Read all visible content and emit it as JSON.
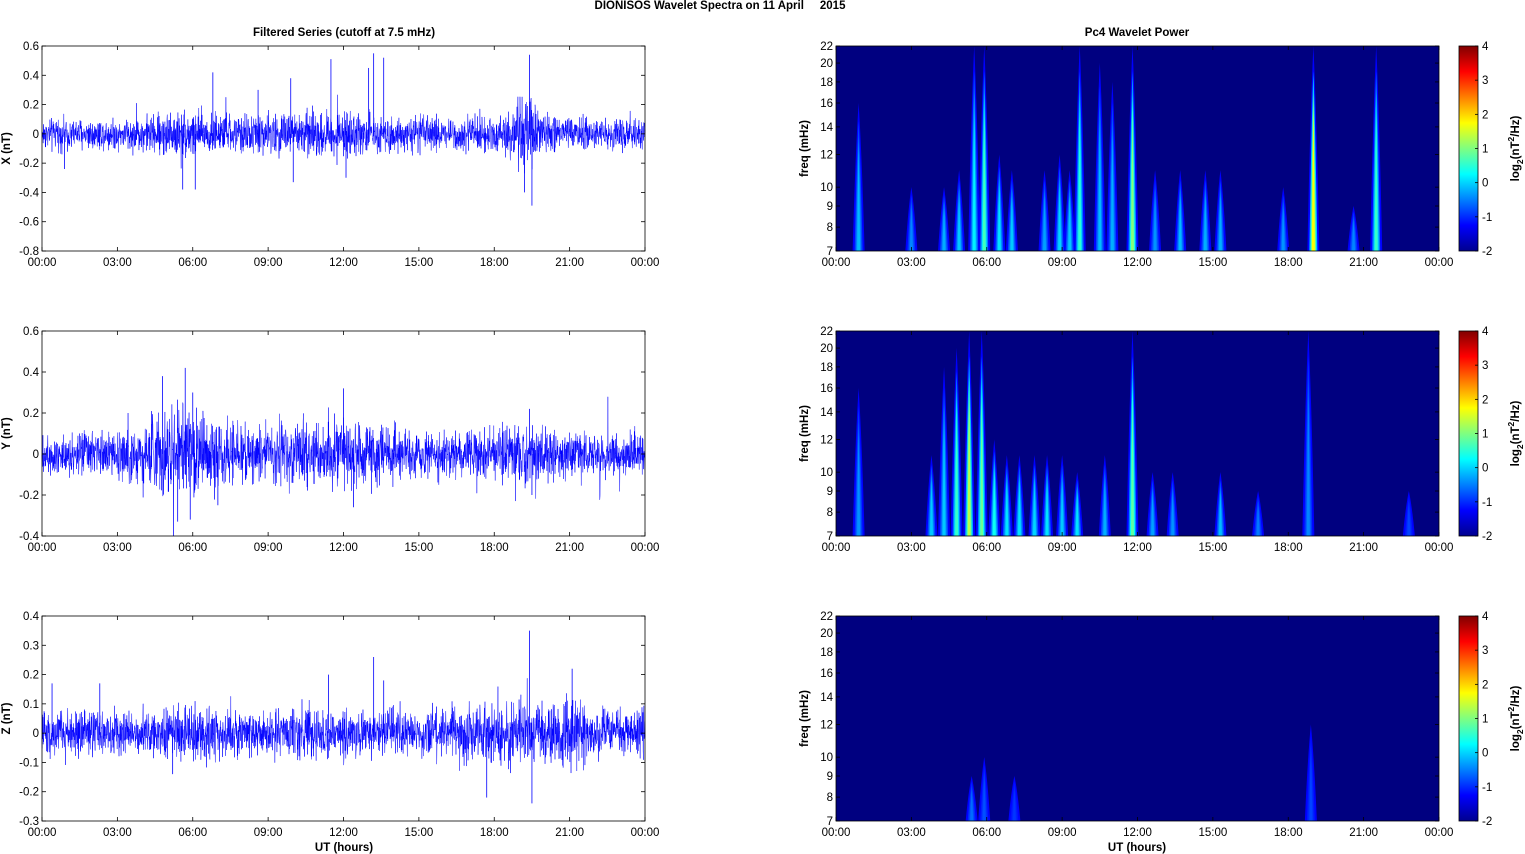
{
  "figure": {
    "suptitle": "DIONISOS Wavelet Spectra on 11 April     2015",
    "left_title": "Filtered Series (cutoff at 7.5 mHz)",
    "right_title": "Pc4 Wavelet Power",
    "xlabel": "UT (hours)",
    "freq_label": "freq (mHz)",
    "colorbar_label_parts": [
      "log",
      "2",
      "(nT",
      "2",
      "/Hz)"
    ]
  },
  "x_ticks": [
    "00:00",
    "03:00",
    "06:00",
    "09:00",
    "12:00",
    "15:00",
    "18:00",
    "21:00",
    "00:00"
  ],
  "colors": {
    "trace": "#0000ff",
    "cmap_low": "#00008f",
    "cmap_high": "#800000"
  },
  "chart_data": [
    {
      "type": "line",
      "component": "X",
      "ylabel": "X (nT)",
      "xlim": [
        0,
        24
      ],
      "ylim": [
        -0.8,
        0.6
      ],
      "yticks": [
        -0.8,
        -0.6,
        -0.4,
        -0.2,
        0,
        0.2,
        0.4,
        0.6
      ],
      "ytick_labels": [
        "-0.8",
        "-0.6",
        "-0.4",
        "-0.2",
        "0",
        "0.2",
        "0.4",
        "0.6"
      ],
      "envelope_hours": [
        0,
        1,
        2,
        3,
        4,
        5,
        6,
        7,
        8,
        9,
        10,
        11,
        12,
        13,
        14,
        15,
        16,
        17,
        18,
        19,
        19.5,
        20,
        21,
        22,
        23,
        24
      ],
      "envelope_amp": [
        0.08,
        0.08,
        0.08,
        0.08,
        0.09,
        0.12,
        0.13,
        0.1,
        0.1,
        0.11,
        0.12,
        0.12,
        0.11,
        0.1,
        0.09,
        0.09,
        0.09,
        0.09,
        0.09,
        0.16,
        0.22,
        0.1,
        0.09,
        0.08,
        0.08,
        0.08
      ],
      "spikes": [
        {
          "t": 6.8,
          "v": 0.42
        },
        {
          "t": 8.6,
          "v": 0.3
        },
        {
          "t": 9.9,
          "v": 0.38
        },
        {
          "t": 11.5,
          "v": 0.51
        },
        {
          "t": 13.0,
          "v": 0.45
        },
        {
          "t": 13.2,
          "v": 0.55
        },
        {
          "t": 13.6,
          "v": 0.52
        },
        {
          "t": 19.4,
          "v": 0.54
        },
        {
          "t": 19.5,
          "v": -0.49
        },
        {
          "t": 5.6,
          "v": -0.38
        },
        {
          "t": 6.1,
          "v": -0.38
        },
        {
          "t": 10.0,
          "v": -0.33
        },
        {
          "t": 12.1,
          "v": -0.3
        },
        {
          "t": 19.2,
          "v": -0.4
        },
        {
          "t": 0.9,
          "v": -0.24
        }
      ]
    },
    {
      "type": "line",
      "component": "Y",
      "ylabel": "Y (nT)",
      "xlim": [
        0,
        24
      ],
      "ylim": [
        -0.4,
        0.6
      ],
      "yticks": [
        -0.4,
        -0.2,
        0,
        0.2,
        0.4,
        0.6
      ],
      "ytick_labels": [
        "-0.4",
        "-0.2",
        "0",
        "0.2",
        "0.4",
        "0.6"
      ],
      "envelope_hours": [
        0,
        1,
        2,
        3,
        4,
        5,
        6,
        7,
        8,
        9,
        10,
        11,
        12,
        13,
        14,
        15,
        16,
        17,
        18,
        19,
        20,
        21,
        22,
        23,
        24
      ],
      "envelope_amp": [
        0.08,
        0.08,
        0.08,
        0.09,
        0.12,
        0.18,
        0.17,
        0.13,
        0.12,
        0.11,
        0.12,
        0.12,
        0.14,
        0.11,
        0.1,
        0.09,
        0.09,
        0.09,
        0.09,
        0.12,
        0.1,
        0.09,
        0.09,
        0.08,
        0.08
      ],
      "spikes": [
        {
          "t": 4.8,
          "v": 0.38
        },
        {
          "t": 5.7,
          "v": 0.42
        },
        {
          "t": 6.0,
          "v": 0.3
        },
        {
          "t": 12.0,
          "v": 0.32
        },
        {
          "t": 19.4,
          "v": 0.22
        },
        {
          "t": 5.4,
          "v": -0.33
        },
        {
          "t": 5.9,
          "v": -0.32
        },
        {
          "t": 12.4,
          "v": -0.26
        },
        {
          "t": 19.5,
          "v": -0.2
        },
        {
          "t": 7.0,
          "v": -0.25
        }
      ]
    },
    {
      "type": "line",
      "component": "Z",
      "ylabel": "Z (nT)",
      "xlim": [
        0,
        24
      ],
      "ylim": [
        -0.3,
        0.4
      ],
      "yticks": [
        -0.3,
        -0.2,
        -0.1,
        0,
        0.1,
        0.2,
        0.3,
        0.4
      ],
      "ytick_labels": [
        "-0.3",
        "-0.2",
        "-0.1",
        "0",
        "0.1",
        "0.2",
        "0.3",
        "0.4"
      ],
      "envelope_hours": [
        0,
        1,
        2,
        3,
        4,
        5,
        6,
        7,
        8,
        9,
        10,
        11,
        12,
        13,
        14,
        15,
        16,
        17,
        18,
        19,
        20,
        21,
        22,
        23,
        24
      ],
      "envelope_amp": [
        0.06,
        0.06,
        0.06,
        0.06,
        0.06,
        0.07,
        0.07,
        0.07,
        0.06,
        0.06,
        0.07,
        0.07,
        0.07,
        0.06,
        0.06,
        0.06,
        0.07,
        0.07,
        0.07,
        0.09,
        0.07,
        0.09,
        0.06,
        0.06,
        0.06
      ],
      "spikes": [
        {
          "t": 0.4,
          "v": 0.17
        },
        {
          "t": 2.3,
          "v": 0.17
        },
        {
          "t": 11.4,
          "v": 0.2
        },
        {
          "t": 13.2,
          "v": 0.26
        },
        {
          "t": 13.6,
          "v": 0.18
        },
        {
          "t": 19.4,
          "v": 0.35
        },
        {
          "t": 21.1,
          "v": 0.22
        },
        {
          "t": 19.5,
          "v": -0.24
        },
        {
          "t": 17.7,
          "v": -0.22
        },
        {
          "t": 5.2,
          "v": -0.14
        }
      ]
    },
    {
      "type": "heatmap",
      "component": "X",
      "ylabel": "freq (mHz)",
      "xlim": [
        0,
        24
      ],
      "ylim": [
        7,
        22
      ],
      "yscale": "log",
      "yticks": [
        7,
        8,
        9,
        10,
        12,
        14,
        16,
        18,
        20,
        22
      ],
      "ytick_labels": [
        "7",
        "8",
        "9",
        "10",
        "12",
        "14",
        "16",
        "18",
        "20",
        "22"
      ],
      "clim": [
        -2,
        4
      ],
      "colorbar_ticks": [
        -2,
        -1,
        0,
        1,
        2,
        3,
        4
      ],
      "colorbar_tick_labels": [
        "-2",
        "-1",
        "0",
        "1",
        "2",
        "3",
        "4"
      ],
      "bursts": [
        {
          "t": 0.9,
          "fmax": 16,
          "peak": -0.6
        },
        {
          "t": 3.0,
          "fmax": 10,
          "peak": -1.0
        },
        {
          "t": 4.3,
          "fmax": 10,
          "peak": -0.7
        },
        {
          "t": 4.9,
          "fmax": 11,
          "peak": -0.5
        },
        {
          "t": 5.5,
          "fmax": 22,
          "peak": -0.2
        },
        {
          "t": 5.9,
          "fmax": 22,
          "peak": 0.4
        },
        {
          "t": 6.5,
          "fmax": 12,
          "peak": -0.3
        },
        {
          "t": 7.0,
          "fmax": 11,
          "peak": -0.5
        },
        {
          "t": 8.3,
          "fmax": 11,
          "peak": -0.8
        },
        {
          "t": 8.9,
          "fmax": 12,
          "peak": -0.4
        },
        {
          "t": 9.3,
          "fmax": 11,
          "peak": -0.5
        },
        {
          "t": 9.7,
          "fmax": 22,
          "peak": 0.2
        },
        {
          "t": 10.5,
          "fmax": 20,
          "peak": -0.6
        },
        {
          "t": 11.0,
          "fmax": 18,
          "peak": -0.7
        },
        {
          "t": 11.8,
          "fmax": 22,
          "peak": 0.9
        },
        {
          "t": 12.7,
          "fmax": 11,
          "peak": -0.9
        },
        {
          "t": 13.7,
          "fmax": 11,
          "peak": -0.6
        },
        {
          "t": 14.7,
          "fmax": 11,
          "peak": -0.7
        },
        {
          "t": 15.3,
          "fmax": 11,
          "peak": -0.7
        },
        {
          "t": 17.8,
          "fmax": 10,
          "peak": -0.9
        },
        {
          "t": 19.0,
          "fmax": 22,
          "peak": 1.8
        },
        {
          "t": 20.6,
          "fmax": 9,
          "peak": -1.0
        },
        {
          "t": 21.5,
          "fmax": 22,
          "peak": 0.3
        }
      ]
    },
    {
      "type": "heatmap",
      "component": "Y",
      "ylabel": "freq (mHz)",
      "xlim": [
        0,
        24
      ],
      "ylim": [
        7,
        22
      ],
      "yscale": "log",
      "yticks": [
        7,
        8,
        9,
        10,
        12,
        14,
        16,
        18,
        20,
        22
      ],
      "ytick_labels": [
        "7",
        "8",
        "9",
        "10",
        "12",
        "14",
        "16",
        "18",
        "20",
        "22"
      ],
      "clim": [
        -2,
        4
      ],
      "colorbar_ticks": [
        -2,
        -1,
        0,
        1,
        2,
        3,
        4
      ],
      "colorbar_tick_labels": [
        "-2",
        "-1",
        "0",
        "1",
        "2",
        "3",
        "4"
      ],
      "bursts": [
        {
          "t": 0.9,
          "fmax": 16,
          "peak": -0.9
        },
        {
          "t": 3.8,
          "fmax": 11,
          "peak": -0.5
        },
        {
          "t": 4.3,
          "fmax": 18,
          "peak": -0.5
        },
        {
          "t": 4.8,
          "fmax": 20,
          "peak": 0.3
        },
        {
          "t": 5.3,
          "fmax": 22,
          "peak": 1.3
        },
        {
          "t": 5.8,
          "fmax": 22,
          "peak": 0.7
        },
        {
          "t": 6.3,
          "fmax": 12,
          "peak": 0.0
        },
        {
          "t": 6.8,
          "fmax": 11,
          "peak": -0.3
        },
        {
          "t": 7.3,
          "fmax": 11,
          "peak": -0.3
        },
        {
          "t": 7.9,
          "fmax": 11,
          "peak": -0.4
        },
        {
          "t": 8.4,
          "fmax": 11,
          "peak": -0.3
        },
        {
          "t": 9.0,
          "fmax": 11,
          "peak": -0.5
        },
        {
          "t": 9.6,
          "fmax": 10,
          "peak": -0.3
        },
        {
          "t": 10.7,
          "fmax": 11,
          "peak": -0.7
        },
        {
          "t": 11.8,
          "fmax": 22,
          "peak": 0.6
        },
        {
          "t": 12.6,
          "fmax": 10,
          "peak": -0.8
        },
        {
          "t": 13.4,
          "fmax": 10,
          "peak": -0.9
        },
        {
          "t": 15.3,
          "fmax": 10,
          "peak": -0.6
        },
        {
          "t": 16.8,
          "fmax": 9,
          "peak": -1.1
        },
        {
          "t": 18.8,
          "fmax": 22,
          "peak": -1.0
        },
        {
          "t": 22.8,
          "fmax": 9,
          "peak": -1.5
        }
      ]
    },
    {
      "type": "heatmap",
      "component": "Z",
      "ylabel": "freq (mHz)",
      "xlim": [
        0,
        24
      ],
      "ylim": [
        7,
        22
      ],
      "yscale": "log",
      "yticks": [
        7,
        8,
        9,
        10,
        12,
        14,
        16,
        18,
        20,
        22
      ],
      "ytick_labels": [
        "7",
        "8",
        "9",
        "10",
        "12",
        "14",
        "16",
        "18",
        "20",
        "22"
      ],
      "clim": [
        -2,
        4
      ],
      "colorbar_ticks": [
        -2,
        -1,
        0,
        1,
        2,
        3,
        4
      ],
      "colorbar_tick_labels": [
        "-2",
        "-1",
        "0",
        "1",
        "2",
        "3",
        "4"
      ],
      "bursts": [
        {
          "t": 5.4,
          "fmax": 9,
          "peak": -1.2
        },
        {
          "t": 5.9,
          "fmax": 10,
          "peak": -1.4
        },
        {
          "t": 7.1,
          "fmax": 9,
          "peak": -1.6
        },
        {
          "t": 18.9,
          "fmax": 12,
          "peak": -1.5
        }
      ]
    }
  ]
}
